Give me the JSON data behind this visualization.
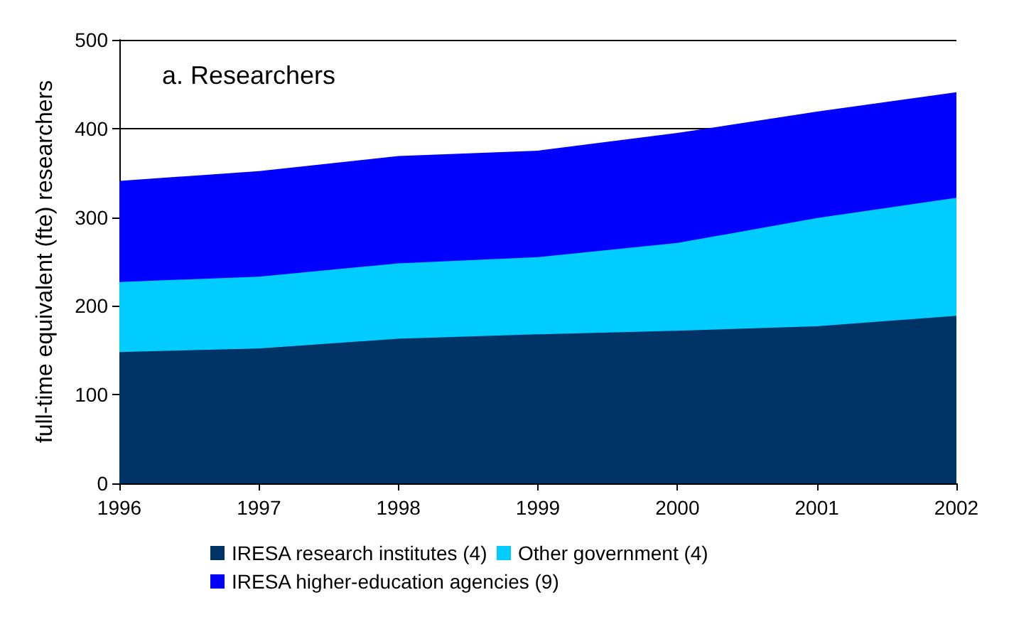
{
  "chart_data": {
    "type": "area",
    "stacked": true,
    "ylabel": "full-time equivalent (fte) researchers",
    "annotations": [
      "a. Researchers"
    ],
    "x": [
      1996,
      1997,
      1998,
      1999,
      2000,
      2001,
      2002
    ],
    "xlim": [
      1996,
      2002
    ],
    "xticks": [
      1996,
      1997,
      1998,
      1999,
      2000,
      2001,
      2002
    ],
    "ylim": [
      0,
      500
    ],
    "yticks": [
      0,
      100,
      200,
      300,
      400,
      500
    ],
    "grid": "y",
    "legend": "bottom",
    "series": [
      {
        "name": "IRESA research institutes (4)",
        "color": "#003366",
        "values": [
          148,
          152,
          163,
          168,
          172,
          177,
          189
        ]
      },
      {
        "name": "Other government (4)",
        "color": "#00ccff",
        "values": [
          79,
          81,
          85,
          87,
          99,
          122,
          133
        ]
      },
      {
        "name": "IRESA higher-education agencies (9)",
        "color": "#0000ff",
        "values": [
          114,
          119,
          121,
          120,
          124,
          120,
          119
        ]
      }
    ]
  }
}
